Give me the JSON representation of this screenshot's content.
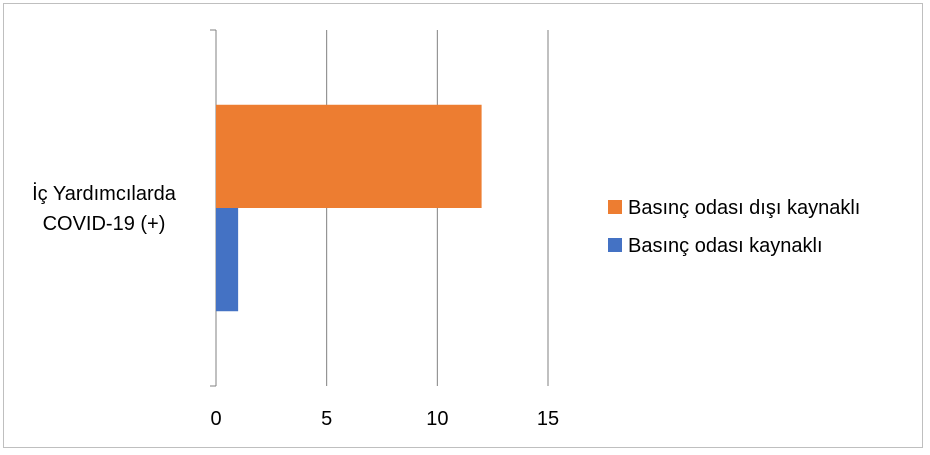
{
  "chart_data": {
    "type": "bar",
    "orientation": "horizontal",
    "categories": [
      "İç Yardımcılarda COVID-19  (+)"
    ],
    "category_lines": [
      [
        "İç Yardımcılarda",
        "COVID-19  (+)"
      ]
    ],
    "series": [
      {
        "name": "Basınç odası dışı kaynaklı",
        "values": [
          12
        ],
        "color": "#ED7D31"
      },
      {
        "name": "Basınç odası kaynaklı",
        "values": [
          1
        ],
        "color": "#4472C4"
      }
    ],
    "xlim": [
      0,
      15
    ],
    "xticks": [
      0,
      5,
      10,
      15
    ],
    "grid": true,
    "legend": "right"
  }
}
